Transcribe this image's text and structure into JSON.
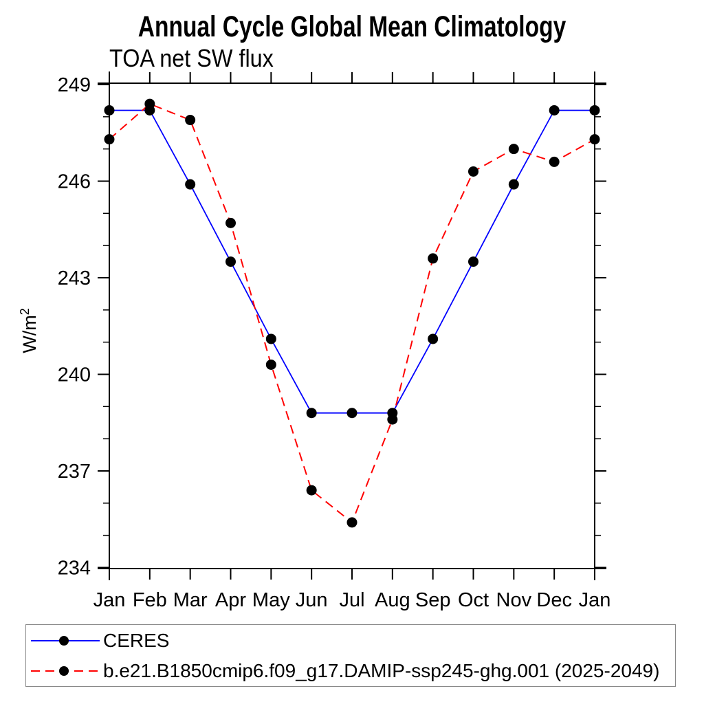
{
  "chart_data": {
    "type": "line",
    "title": "Annual Cycle Global Mean Climatology",
    "subtitle": "TOA net SW flux",
    "ylabel": {
      "base": "W/m",
      "sup": "2"
    },
    "xlabel": "",
    "categories": [
      "Jan",
      "Feb",
      "Mar",
      "Apr",
      "May",
      "Jun",
      "Jul",
      "Aug",
      "Sep",
      "Oct",
      "Nov",
      "Dec",
      "Jan"
    ],
    "series": [
      {
        "name": "CERES",
        "color": "#0000ff",
        "line_style": "solid",
        "marker": "filled-circle",
        "marker_color": "#000000",
        "values": [
          248.2,
          248.2,
          245.9,
          243.5,
          241.1,
          238.8,
          238.8,
          238.8,
          241.1,
          243.5,
          245.9,
          248.2,
          248.2
        ]
      },
      {
        "name": "b.e21.B1850cmip6.f09_g17.DAMIP-ssp245-ghg.001 (2025-2049)",
        "color": "#ff0000",
        "line_style": "dashed",
        "marker": "filled-circle",
        "marker_color": "#000000",
        "values": [
          247.3,
          248.4,
          247.9,
          244.7,
          240.3,
          236.4,
          235.4,
          238.6,
          243.6,
          246.3,
          247.0,
          246.6,
          247.3
        ]
      }
    ],
    "y_axis": {
      "major_ticks": [
        234,
        237,
        240,
        243,
        246,
        249
      ],
      "minor_step": 1,
      "range": [
        234,
        249
      ]
    },
    "grid": false,
    "legend_position": "bottom-left-box",
    "frame_color": "#000000",
    "background": "#ffffff"
  }
}
